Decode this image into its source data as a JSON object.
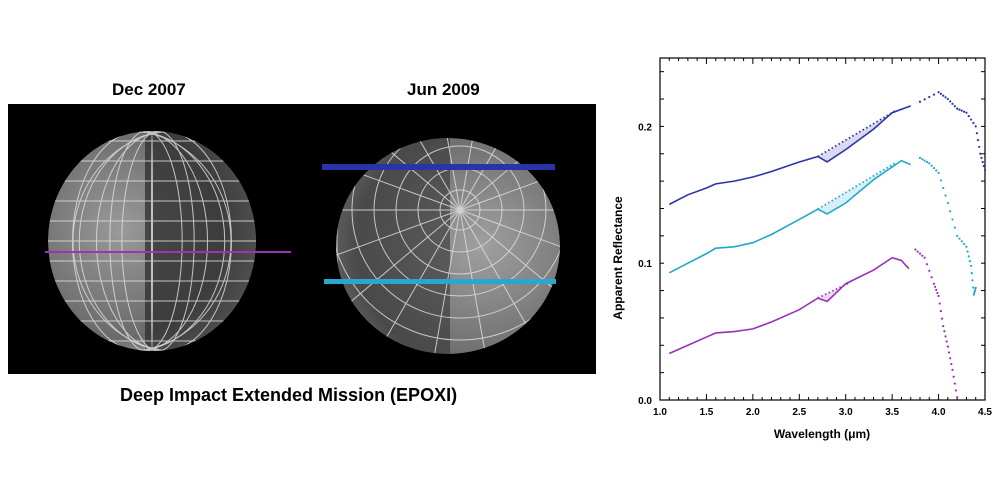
{
  "images": {
    "left_title": "Dec 2007",
    "right_title": "Jun 2009",
    "caption": "Deep Impact Extended Mission (EPOXI)",
    "track_colors": {
      "left_track": "#9a35b5",
      "upper_track": "#2a34a8",
      "lower_track": "#2aa6d0"
    }
  },
  "chart_data": {
    "type": "line",
    "xlabel": "Wavelength (μm)",
    "ylabel": "Apparent Reflectance",
    "xlim": [
      1.0,
      4.5
    ],
    "ylim": [
      0.0,
      0.25
    ],
    "xticks": [
      "1.0",
      "1.5",
      "2.0",
      "2.5",
      "3.0",
      "3.5",
      "4.0",
      "4.5"
    ],
    "yticks": [
      "0.0",
      "0.1",
      "0.2"
    ],
    "grid": false,
    "series": [
      {
        "color": "#2a34a8",
        "x": [
          1.1,
          1.3,
          1.5,
          1.6,
          1.8,
          2.0,
          2.2,
          2.5,
          2.7,
          2.8,
          3.0,
          3.3,
          3.5,
          3.7,
          3.8,
          4.0,
          4.1,
          4.2,
          4.3,
          4.4,
          4.45,
          4.5
        ],
        "y": [
          0.143,
          0.15,
          0.155,
          0.158,
          0.16,
          0.163,
          0.167,
          0.174,
          0.178,
          0.174,
          0.183,
          0.198,
          0.21,
          0.215,
          0.218,
          0.225,
          0.22,
          0.213,
          0.21,
          0.2,
          0.18,
          0.168
        ],
        "continuum": {
          "x": [
            2.7,
            3.55
          ],
          "y": [
            0.178,
            0.212
          ]
        }
      },
      {
        "color": "#22a8cc",
        "x": [
          1.1,
          1.3,
          1.5,
          1.6,
          1.8,
          2.0,
          2.2,
          2.5,
          2.7,
          2.8,
          3.0,
          3.3,
          3.6,
          3.7,
          3.8,
          3.9,
          4.0,
          4.1,
          4.2,
          4.3,
          4.35,
          4.38,
          4.4
        ],
        "y": [
          0.093,
          0.1,
          0.107,
          0.111,
          0.112,
          0.115,
          0.121,
          0.132,
          0.1395,
          0.136,
          0.144,
          0.161,
          0.175,
          0.172,
          0.177,
          0.173,
          0.166,
          0.144,
          0.12,
          0.112,
          0.098,
          0.077,
          0.082
        ],
        "continuum": {
          "x": [
            2.7,
            3.55
          ],
          "y": [
            0.1395,
            0.174
          ]
        }
      },
      {
        "color": "#9a30b8",
        "x": [
          1.1,
          1.3,
          1.5,
          1.6,
          1.8,
          2.0,
          2.2,
          2.5,
          2.7,
          2.8,
          3.0,
          3.3,
          3.5,
          3.6,
          3.68,
          3.75,
          3.85,
          3.95,
          4.0,
          4.05,
          4.1,
          4.15,
          4.2
        ],
        "y": [
          0.034,
          0.04,
          0.046,
          0.049,
          0.05,
          0.052,
          0.057,
          0.066,
          0.0745,
          0.072,
          0.085,
          0.095,
          0.104,
          0.102,
          0.096,
          0.11,
          0.104,
          0.085,
          0.076,
          0.054,
          0.039,
          0.022,
          0.002
        ],
        "continuum": {
          "x": [
            2.7,
            3.05
          ],
          "y": [
            0.0745,
            0.086
          ]
        }
      }
    ]
  }
}
